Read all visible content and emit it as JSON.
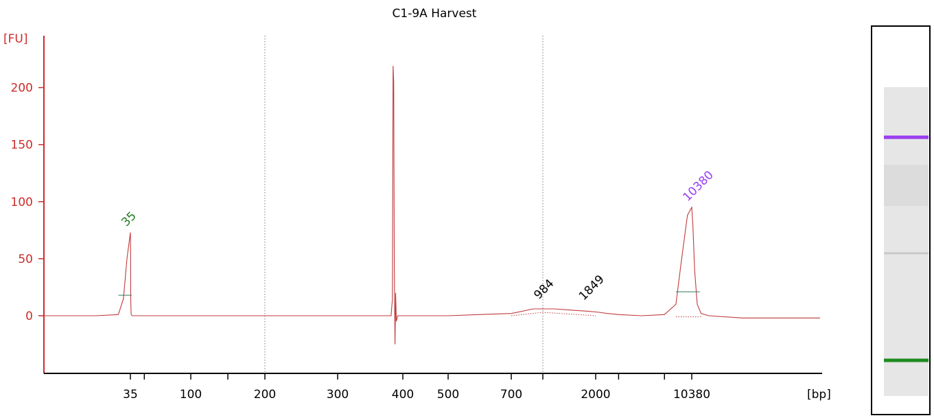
{
  "chart_data": {
    "type": "line",
    "title": "C1-9A Harvest",
    "ylabel": "[FU]",
    "xlabel": "[bp]",
    "ylim": [
      -50,
      240
    ],
    "yticks": [
      0,
      50,
      100,
      150,
      200
    ],
    "xtick_labels": [
      "35",
      "100",
      "200",
      "300",
      "400",
      "500",
      "700",
      "2000",
      "10380"
    ],
    "series": [
      {
        "values": [
          [
            30,
            0
          ],
          [
            33,
            0
          ],
          [
            34.3,
            1
          ],
          [
            34.6,
            15
          ],
          [
            34.8,
            50
          ],
          [
            35,
            73
          ],
          [
            35.2,
            55
          ],
          [
            35.4,
            15
          ],
          [
            35.8,
            1
          ],
          [
            37,
            0
          ],
          [
            80,
            0
          ],
          [
            150,
            0
          ],
          [
            250,
            0
          ],
          [
            350,
            0
          ],
          [
            382,
            0
          ],
          [
            383,
            8
          ],
          [
            384,
            14
          ],
          [
            385,
            219
          ],
          [
            386,
            205
          ],
          [
            387,
            40
          ],
          [
            388,
            -25
          ],
          [
            389,
            20
          ],
          [
            390,
            -5
          ],
          [
            392,
            0
          ],
          [
            400,
            0
          ],
          [
            500,
            0
          ],
          [
            600,
            1
          ],
          [
            700,
            2
          ],
          [
            800,
            4
          ],
          [
            900,
            6
          ],
          [
            984,
            6
          ],
          [
            1200,
            6
          ],
          [
            1500,
            5
          ],
          [
            1849,
            4
          ],
          [
            2300,
            3
          ],
          [
            3000,
            2
          ],
          [
            4000,
            1
          ],
          [
            6000,
            0
          ],
          [
            8000,
            1
          ],
          [
            9000,
            10
          ],
          [
            9500,
            50
          ],
          [
            10000,
            88
          ],
          [
            10380,
            95
          ],
          [
            10800,
            80
          ],
          [
            11500,
            40
          ],
          [
            12500,
            10
          ],
          [
            14000,
            2
          ],
          [
            17000,
            0
          ],
          [
            30000,
            -2
          ],
          [
            60000,
            -2
          ]
        ]
      }
    ],
    "peaks": [
      {
        "label": "35",
        "x": 35,
        "color": "#1f7a1f"
      },
      {
        "label": "984",
        "x": 984,
        "color": "#000000"
      },
      {
        "label": "1849",
        "x": 1849,
        "color": "#000000"
      },
      {
        "label": "10380",
        "x": 10380,
        "color": "#9b3df0"
      }
    ],
    "gel_bands": [
      {
        "position": "upper",
        "color": "#9b3df0"
      },
      {
        "position": "middle",
        "color": "#c8c8c8"
      },
      {
        "position": "lower",
        "color": "#1f8a1f"
      }
    ],
    "grid": "vertical dotted at 200 and 700",
    "legend": "none"
  }
}
